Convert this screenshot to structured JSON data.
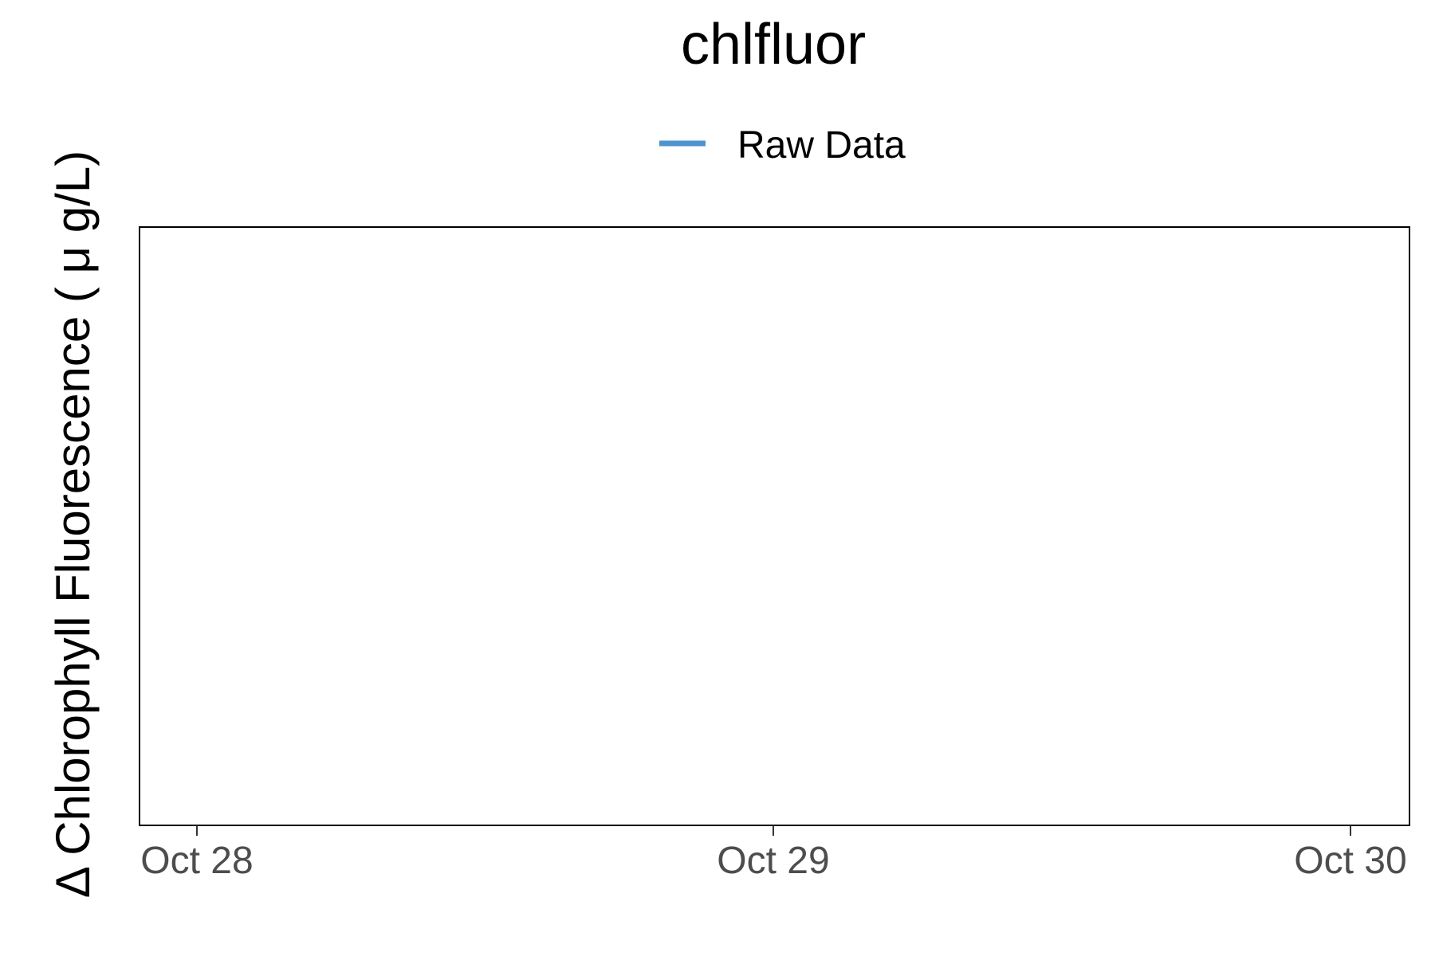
{
  "chart_data": {
    "type": "line",
    "title": "chlfluor",
    "xlabel": "",
    "ylabel": "Δ Chlorophyll Fluorescence ( μ g/L)",
    "x_ticks": [
      "Oct 28",
      "Oct 29",
      "Oct 30"
    ],
    "xlim": [
      "Oct 28",
      "Oct 30"
    ],
    "y_ticks": [],
    "grid": false,
    "legend_position": "top",
    "series": [
      {
        "name": "Raw Data",
        "color": "#4f93cf",
        "x": [],
        "values": []
      }
    ]
  }
}
